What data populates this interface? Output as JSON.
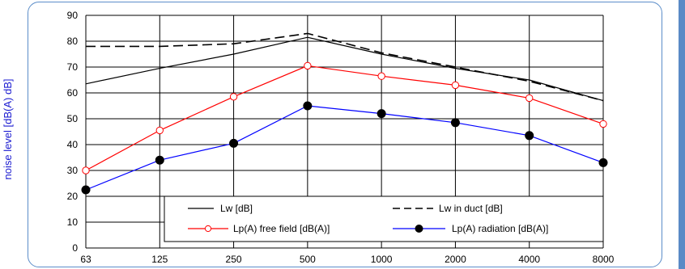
{
  "chart_data": {
    "type": "line",
    "title": "",
    "xlabel": "",
    "ylabel": "noise level [dB(A)  dB]",
    "categories": [
      "63",
      "125",
      "250",
      "500",
      "1000",
      "2000",
      "4000",
      "8000"
    ],
    "ylim": [
      0,
      90
    ],
    "yticks": [
      "0",
      "10",
      "20",
      "30",
      "40",
      "50",
      "60",
      "70",
      "80",
      "90"
    ],
    "grid": true,
    "legend_placement": "bottom-right",
    "series": [
      {
        "name": "Lw [dB]",
        "values": [
          63.5,
          69.5,
          75,
          81.5,
          75,
          69.5,
          65,
          57
        ],
        "color": "#000000",
        "dash": "solid",
        "marker": "none"
      },
      {
        "name": "Lw in duct [dB]",
        "values": [
          78,
          78,
          79,
          83,
          75.5,
          70,
          64.5,
          57
        ],
        "color": "#000000",
        "dash": "dashed",
        "marker": "none"
      },
      {
        "name": "Lp(A) free field [dB(A)]",
        "values": [
          30,
          45.5,
          58.5,
          70.5,
          66.5,
          63,
          58,
          48
        ],
        "color": "#ff0000",
        "dash": "solid",
        "marker": "open-circle"
      },
      {
        "name": "Lp(A) radiation [dB(A)]",
        "values": [
          22.5,
          34,
          40.5,
          55,
          52,
          48.5,
          43.5,
          33
        ],
        "color": "#0000ff",
        "dash": "solid",
        "marker": "filled-circle"
      }
    ]
  },
  "colors": {
    "frame_border": "#5b8dc9",
    "right_strip": "#5a8ac6",
    "ylabel": "#1a1ad0"
  }
}
